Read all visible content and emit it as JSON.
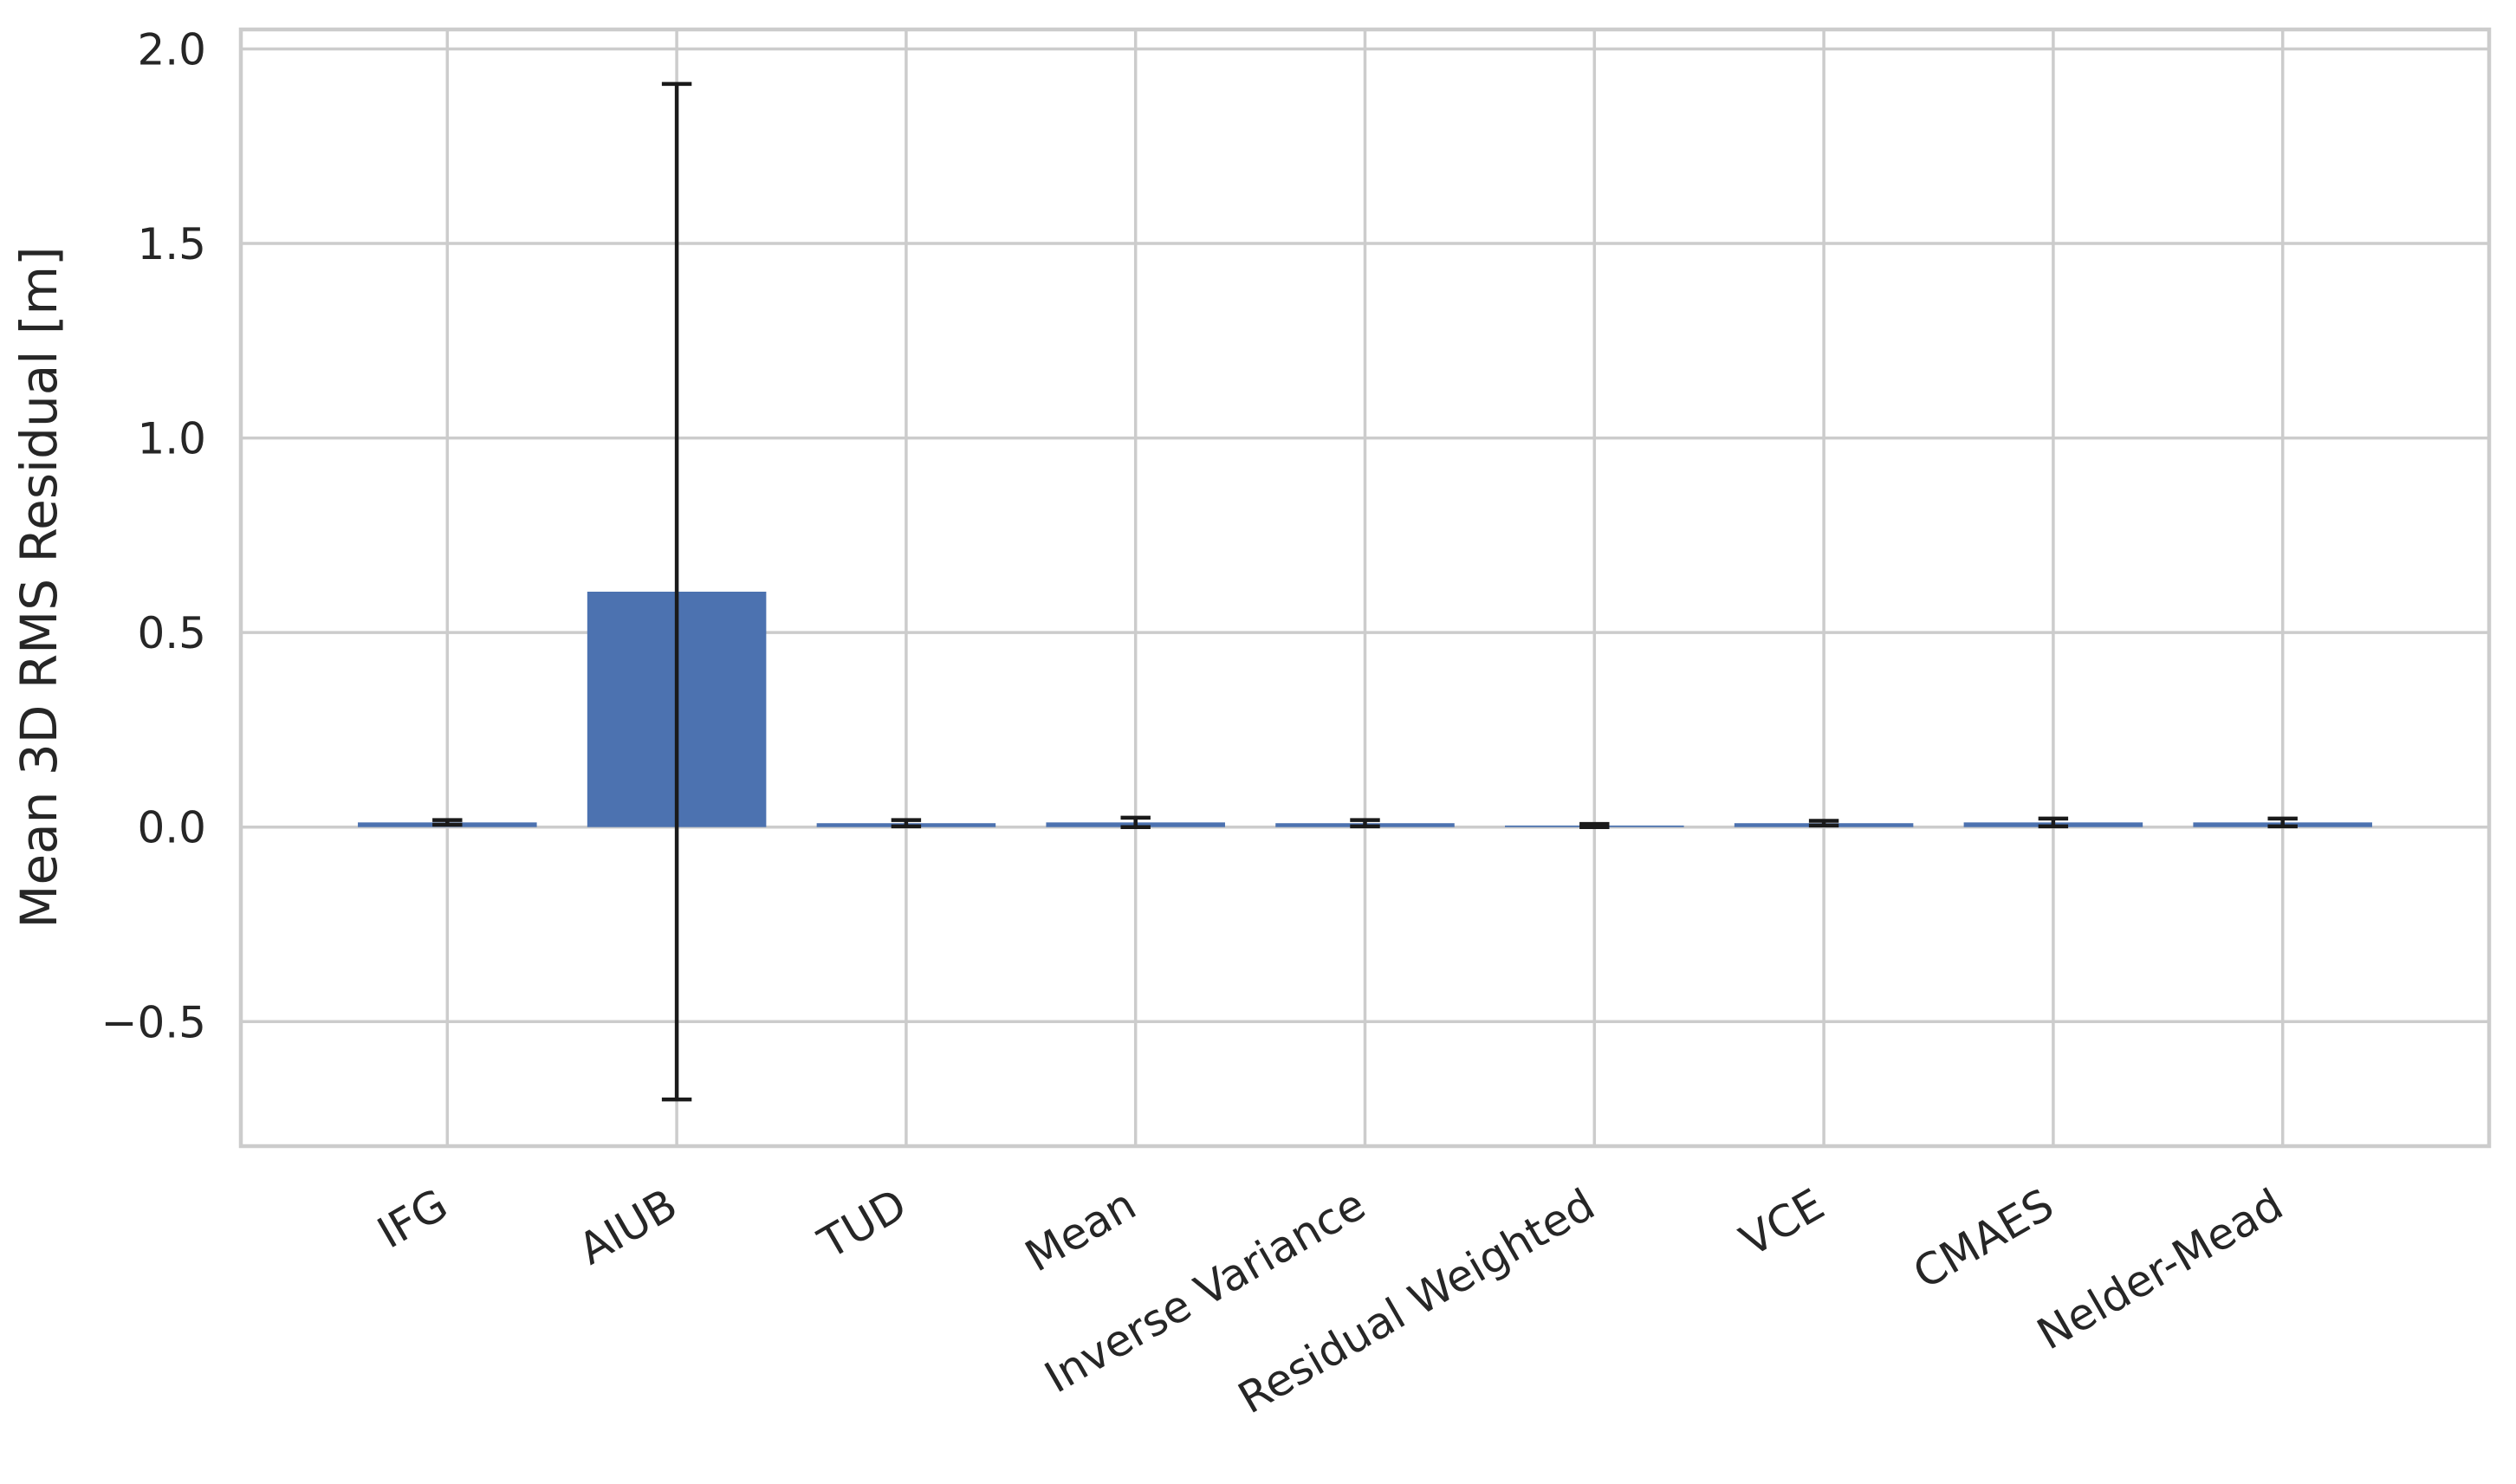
{
  "chart_data": {
    "type": "bar",
    "title": "",
    "xlabel": "",
    "ylabel": "Mean 3D RMS Residual [m]",
    "categories": [
      "IFG",
      "AIUB",
      "TUD",
      "Mean",
      "Inverse Variance",
      "Residual Weighted",
      "VCE",
      "CMAES",
      "Nelder-Mead"
    ],
    "values": [
      0.012,
      0.605,
      0.01,
      0.012,
      0.01,
      0.004,
      0.01,
      0.012,
      0.012
    ],
    "errors": [
      0.006,
      1.305,
      0.008,
      0.012,
      0.008,
      0.004,
      0.006,
      0.01,
      0.01
    ],
    "ylim": [
      -0.82,
      2.05
    ],
    "yticks": [
      -0.5,
      0.0,
      0.5,
      1.0,
      1.5,
      2.0
    ],
    "ytick_labels": [
      "−0.5",
      "0.0",
      "0.5",
      "1.0",
      "1.5",
      "2.0"
    ],
    "grid": true,
    "colors": {
      "bar": "#4c72b0",
      "errorbar": "#1a1a1a",
      "grid": "#cccccc",
      "text": "#262626"
    }
  }
}
